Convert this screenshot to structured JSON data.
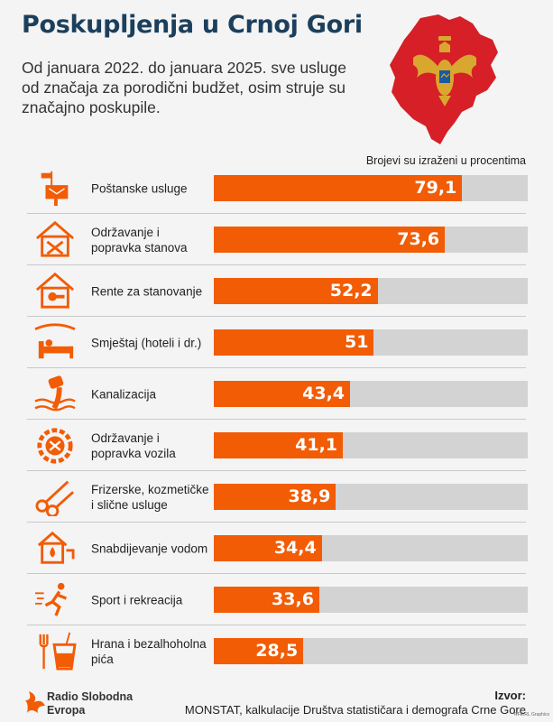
{
  "header": {
    "title": "Poskupljenja u Crnoj Gori",
    "subtitle": "Od januara 2022. do januara 2025. sve usluge od značaja za porodični budžet, osim struje su značajno poskupile."
  },
  "chart_data": {
    "type": "bar",
    "orientation": "horizontal",
    "unit_note": "Brojevi su izraženi u procentima",
    "xlim": [
      0,
      100
    ],
    "bar_color": "#f25c05",
    "track_color": "#d3d3d3",
    "categories": [
      "Poštanske usluge",
      "Održavanje i popravka stanova",
      "Rente za stanovanje",
      "Smještaj (hoteli i dr.)",
      "Kanalizacija",
      "Održavanje i popravka vozila",
      "Frizerske, kozmetičke i slične usluge",
      "Snabdijevanje vodom",
      "Sport i rekreacija",
      "Hrana i bezalhoholna pića"
    ],
    "values": [
      79.1,
      73.6,
      52.2,
      51,
      43.4,
      41.1,
      38.9,
      34.4,
      33.6,
      28.5
    ],
    "value_labels": [
      "79,1",
      "73,6",
      "52,2",
      "51",
      "43,4",
      "41,1",
      "38,9",
      "34,4",
      "33,6",
      "28,5"
    ],
    "icons": [
      "mailbox-icon",
      "house-repair-icon",
      "rent-house-icon",
      "bed-icon",
      "sewage-pipe-icon",
      "car-repair-gear-icon",
      "scissors-icon",
      "water-house-icon",
      "runner-icon",
      "food-drink-icon"
    ]
  },
  "footer": {
    "logo_text": "Radio Slobodna Evropa",
    "source_label": "Izvor:",
    "source_text": "MONSTAT, kalkulacije Društva statističara i demografa Crne Gore",
    "credit": "RFE/RL Graphics"
  },
  "colors": {
    "accent": "#f25c05",
    "title": "#1c3f5c",
    "map_red": "#d61f26",
    "eagle_gold": "#d9a730"
  }
}
